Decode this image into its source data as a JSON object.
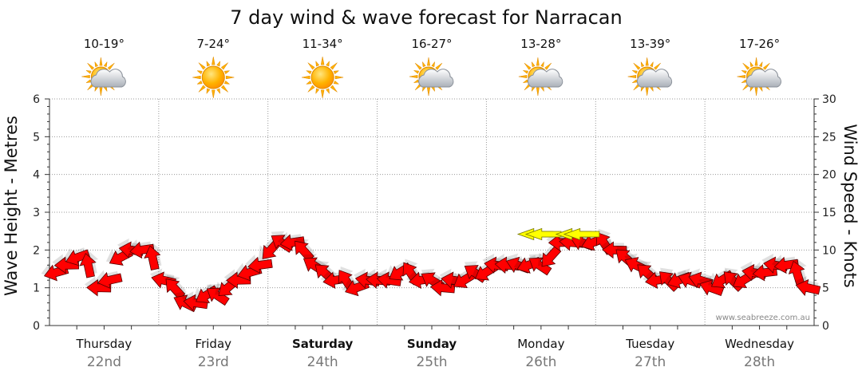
{
  "chart_data": {
    "type": "line",
    "title": "7 day wind & wave forecast for Narracan",
    "ylabel_left": "Wave Height - Metres",
    "ylabel_right": "Wind Speed - Knots",
    "ylim_left": [
      0,
      6
    ],
    "ylim_right": [
      0,
      30
    ],
    "yticks_left": [
      "0",
      "1",
      "2",
      "3",
      "4",
      "5",
      "6"
    ],
    "yticks_right": [
      "0",
      "5",
      "10",
      "15",
      "20",
      "25",
      "30"
    ],
    "grid": true,
    "credit": "www.seabreeze.com.au",
    "days": [
      {
        "name": "Thursday",
        "date": "22nd",
        "temp": "10-19°",
        "weather": "partly-cloudy",
        "bold": false
      },
      {
        "name": "Friday",
        "date": "23rd",
        "temp": "7-24°",
        "weather": "sunny",
        "bold": false
      },
      {
        "name": "Saturday",
        "date": "24th",
        "temp": "11-34°",
        "weather": "sunny",
        "bold": true
      },
      {
        "name": "Sunday",
        "date": "25th",
        "temp": "16-27°",
        "weather": "partly-cloudy",
        "bold": true
      },
      {
        "name": "Monday",
        "date": "26th",
        "temp": "13-28°",
        "weather": "partly-cloudy",
        "bold": false
      },
      {
        "name": "Tuesday",
        "date": "27th",
        "temp": "13-39°",
        "weather": "partly-cloudy",
        "bold": false
      },
      {
        "name": "Wednesday",
        "date": "28th",
        "temp": "17-26°",
        "weather": "partly-cloudy",
        "bold": false
      }
    ],
    "series": [
      {
        "values": [
          7,
          8,
          9,
          8,
          5,
          6,
          9,
          10,
          10,
          9,
          6,
          5,
          3,
          3,
          4,
          4,
          5,
          6,
          7,
          8,
          10,
          11,
          11,
          10,
          8,
          7,
          6,
          6,
          5,
          6,
          6,
          6,
          7,
          7,
          6,
          6,
          5,
          6,
          6,
          7,
          7,
          8,
          8,
          8,
          8,
          8,
          9,
          11,
          11,
          11,
          11,
          11,
          10,
          9,
          8,
          7,
          6,
          6,
          6,
          6,
          6,
          5,
          6,
          6,
          6,
          7,
          7,
          8,
          8,
          7,
          5
        ]
      },
      {
        "name": "Strong wind (>10 kn)",
        "arrows": [
          {
            "x": 4.45,
            "y": 12.1
          },
          {
            "x": 4.8,
            "y": 12.1
          }
        ]
      }
    ],
    "colors": {
      "wind_arrow": "#ff0000",
      "wind_strong": "#ffff00",
      "arrow_stroke": "#550000",
      "grid": "#999999",
      "axis": "#333333"
    },
    "icons": {
      "sunny": "sun-icon",
      "partly-cloudy": "sun-cloud-icon"
    }
  }
}
